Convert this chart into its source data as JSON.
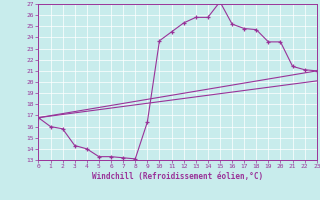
{
  "xlabel": "Windchill (Refroidissement éolien,°C)",
  "bg_color": "#c8ecec",
  "line_color": "#993399",
  "xlim": [
    0,
    23
  ],
  "ylim": [
    13,
    27
  ],
  "yticks": [
    13,
    14,
    15,
    16,
    17,
    18,
    19,
    20,
    21,
    22,
    23,
    24,
    25,
    26,
    27
  ],
  "xticks": [
    0,
    1,
    2,
    3,
    4,
    5,
    6,
    7,
    8,
    9,
    10,
    11,
    12,
    13,
    14,
    15,
    16,
    17,
    18,
    19,
    20,
    21,
    22,
    23
  ],
  "main_x": [
    0,
    1,
    2,
    3,
    4,
    5,
    6,
    7,
    8,
    9,
    10,
    11,
    12,
    13,
    14,
    15,
    16,
    17,
    18,
    19,
    20,
    21,
    22,
    23
  ],
  "main_y": [
    16.8,
    16.0,
    15.8,
    14.3,
    14.0,
    13.3,
    13.3,
    13.2,
    13.1,
    16.4,
    23.7,
    24.5,
    25.3,
    25.8,
    25.8,
    27.2,
    25.2,
    24.8,
    24.7,
    23.6,
    23.6,
    21.4,
    21.1,
    21.0
  ],
  "line1_x": [
    0,
    23
  ],
  "line1_y": [
    16.8,
    21.0
  ],
  "line2_x": [
    0,
    23
  ],
  "line2_y": [
    16.8,
    20.1
  ]
}
